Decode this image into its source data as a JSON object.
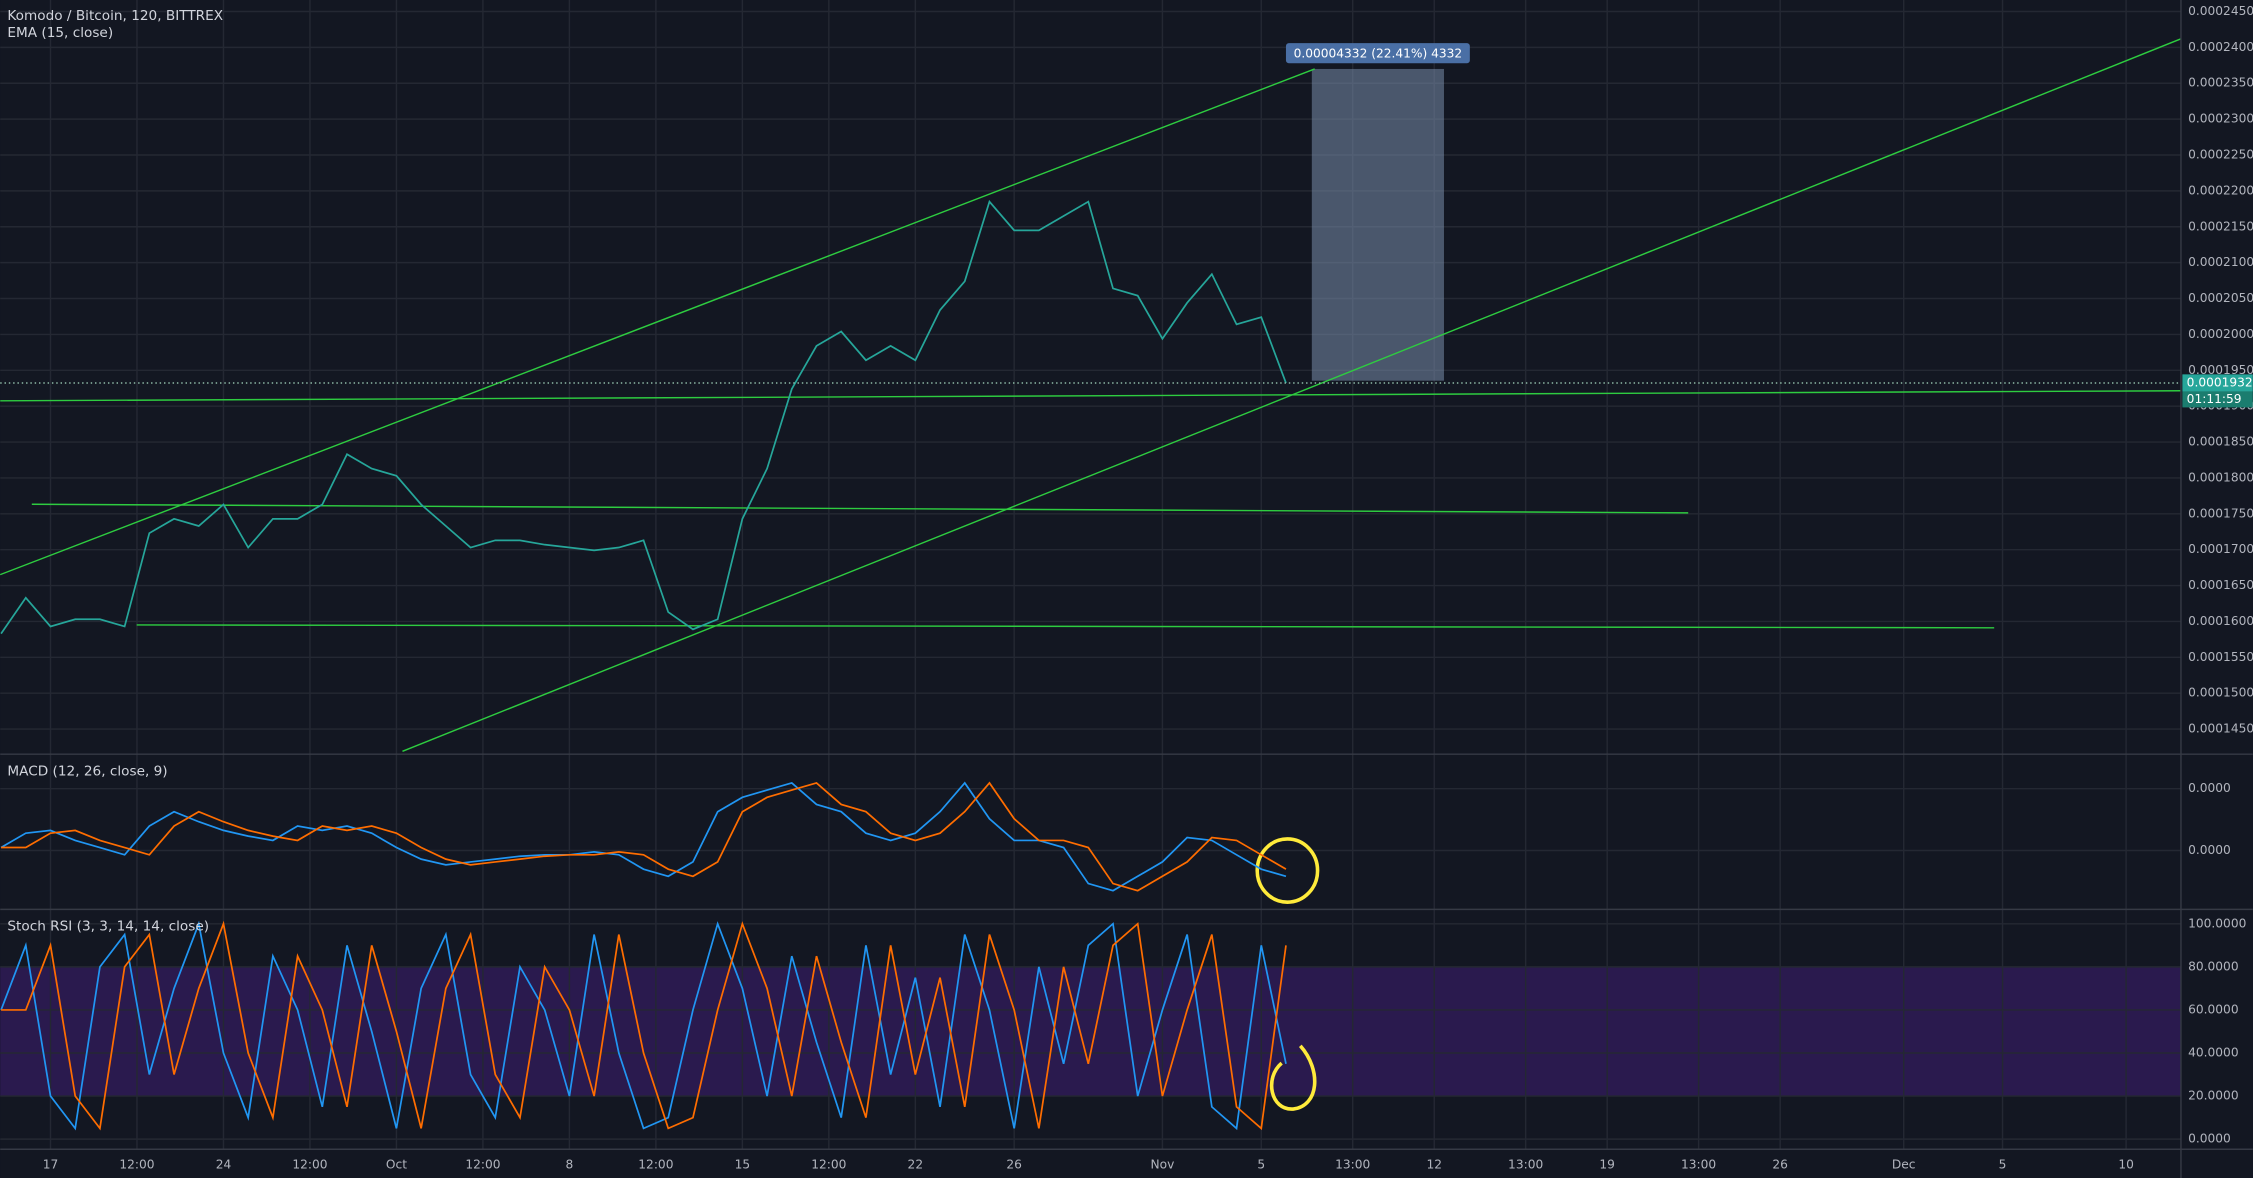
{
  "chart_data": [
    {
      "type": "line",
      "title": "Komodo / Bitcoin, 120, BITTREX",
      "subtitle": "EMA (15, close)",
      "x": [
        -2,
        -1,
        0,
        1,
        2,
        3,
        4,
        5,
        6,
        7,
        8,
        9,
        10,
        11,
        12,
        13,
        14,
        15,
        16,
        17,
        18,
        19,
        20,
        21,
        22,
        23,
        24,
        25,
        26,
        27,
        28,
        29,
        30,
        31,
        32,
        33,
        34,
        35,
        36,
        37,
        38,
        39,
        40,
        41,
        42,
        43,
        44,
        45,
        46,
        47,
        48,
        49,
        50
      ],
      "series": [
        {
          "color": "#26a69a",
          "values": [
            0.0001583,
            0.0001633,
            0.0001593,
            0.0001603,
            0.0001603,
            0.0001593,
            0.0001723,
            0.0001743,
            0.0001733,
            0.0001763,
            0.0001703,
            0.0001743,
            0.0001743,
            0.0001763,
            0.0001833,
            0.0001813,
            0.0001803,
            0.0001763,
            0.0001733,
            0.0001703,
            0.0001713,
            0.0001713,
            0.0001707,
            0.0001703,
            0.0001699,
            0.0001703,
            0.0001713,
            0.0001613,
            0.0001589,
            0.0001603,
            0.0001743,
            0.0001813,
            0.0001924,
            0.0001984,
            0.0002004,
            0.0001964,
            0.0001984,
            0.0001964,
            0.0002034,
            0.0002074,
            0.0002185,
            0.0002145,
            0.0002145,
            0.0002165,
            0.0002185,
            0.0002064,
            0.0002054,
            0.0001994,
            0.0002044,
            0.0002084,
            0.0002014,
            0.0002024,
            0.00019323
          ]
        }
      ],
      "xlim": [
        -2.035,
        86.22
      ],
      "ylim": [
        0.0001415,
        0.0002466
      ],
      "yticks": [
        {
          "value": 0.000145,
          "label": "0.00014500"
        },
        {
          "value": 0.00015,
          "label": "0.00015000"
        },
        {
          "value": 0.000155,
          "label": "0.00015500"
        },
        {
          "value": 0.00016,
          "label": "0.00016000"
        },
        {
          "value": 0.000165,
          "label": "0.00016500"
        },
        {
          "value": 0.00017,
          "label": "0.00017000"
        },
        {
          "value": 0.000175,
          "label": "0.00017500"
        },
        {
          "value": 0.00018,
          "label": "0.00018000"
        },
        {
          "value": 0.000185,
          "label": "0.00018500"
        },
        {
          "value": 0.00019,
          "label": "0.00019000"
        },
        {
          "value": 0.000195,
          "label": "0.00019500"
        },
        {
          "value": 0.0002,
          "label": "0.00020000"
        },
        {
          "value": 0.000205,
          "label": "0.00020500"
        },
        {
          "value": 0.00021,
          "label": "0.00021000"
        },
        {
          "value": 0.000215,
          "label": "0.00021500"
        },
        {
          "value": 0.00022,
          "label": "0.00022000"
        },
        {
          "value": 0.000225,
          "label": "0.00022500"
        },
        {
          "value": 0.00023,
          "label": "0.00023000"
        },
        {
          "value": 0.000235,
          "label": "0.00023500"
        },
        {
          "value": 0.00024,
          "label": "0.00024000"
        },
        {
          "value": 0.000245,
          "label": "0.00024500"
        }
      ],
      "measure_label": "0.00004332 (22.41%) 4332",
      "last_value": 0.00019323,
      "countdown": "01:11:59",
      "grid": true
    },
    {
      "type": "line",
      "title": "MACD (12, 26, close, 9)",
      "series": [
        {
          "color": "#2196f3",
          "values": [
            1.9e-07,
            1.12e-06,
            1.3e-06,
            6.5e-07,
            1.9e-07,
            -2.8e-07,
            1.58e-06,
            2.51e-06,
            1.86e-06,
            1.3e-06,
            9.3e-07,
            6.5e-07,
            1.58e-06,
            1.3e-06,
            1.58e-06,
            1.12e-06,
            1.9e-07,
            -5.6e-07,
            -9.3e-07,
            -7.4e-07,
            -5.6e-07,
            -3.7e-07,
            -2.8e-07,
            -2.8e-07,
            -9e-08,
            -2.8e-07,
            -1.21e-06,
            -1.67e-06,
            -7.4e-07,
            2.51e-06,
            3.44e-06,
            3.91e-06,
            4.37e-06,
            2.98e-06,
            2.51e-06,
            1.12e-06,
            6.5e-07,
            1.12e-06,
            2.51e-06,
            4.37e-06,
            2.05e-06,
            6.5e-07,
            6.5e-07,
            1.9e-07,
            -2.14e-06,
            -2.6e-06,
            -1.67e-06,
            -7.4e-07,
            8.4e-07,
            6.5e-07,
            -2.8e-07,
            -1.21e-06,
            -1.67e-06
          ]
        },
        {
          "color": "#ff6d00",
          "values": [
            1.9e-07,
            1.9e-07,
            1.12e-06,
            1.3e-06,
            6.5e-07,
            1.9e-07,
            -2.8e-07,
            1.58e-06,
            2.51e-06,
            1.86e-06,
            1.3e-06,
            9.3e-07,
            6.5e-07,
            1.58e-06,
            1.3e-06,
            1.58e-06,
            1.12e-06,
            1.9e-07,
            -5.6e-07,
            -9.3e-07,
            -7.4e-07,
            -5.6e-07,
            -3.7e-07,
            -2.8e-07,
            -2.8e-07,
            -9e-08,
            -2.8e-07,
            -1.21e-06,
            -1.67e-06,
            -7.4e-07,
            2.51e-06,
            3.44e-06,
            3.91e-06,
            4.37e-06,
            2.98e-06,
            2.51e-06,
            1.12e-06,
            6.5e-07,
            1.12e-06,
            2.51e-06,
            4.37e-06,
            2.05e-06,
            6.5e-07,
            6.5e-07,
            1.9e-07,
            -2.14e-06,
            -2.6e-06,
            -1.67e-06,
            -7.4e-07,
            8.4e-07,
            6.5e-07,
            -2.8e-07,
            -1.21e-06
          ]
        }
      ],
      "xlim": [
        -2.035,
        86.22
      ],
      "ylim": [
        -3.81e-06,
        6.23e-06
      ],
      "yticks": [
        {
          "value": 0,
          "label": "0.0000"
        },
        {
          "value": 4e-06,
          "label": "0.0000"
        }
      ],
      "grid": true
    },
    {
      "type": "line",
      "title": "Stoch RSI (3, 3, 14, 14, close)",
      "series": [
        {
          "color": "#2196f3",
          "values": [
            60,
            90,
            20,
            5,
            80,
            95,
            30,
            70,
            100,
            40,
            10,
            85,
            60,
            15,
            90,
            50,
            5,
            70,
            95,
            30,
            10,
            80,
            60,
            20,
            95,
            40,
            5,
            10,
            60,
            100,
            70,
            20,
            85,
            45,
            10,
            90,
            30,
            75,
            15,
            95,
            60,
            5,
            80,
            35,
            90,
            100,
            20,
            60,
            95,
            15,
            5,
            90,
            35
          ]
        },
        {
          "color": "#ff6d00",
          "values": [
            60,
            60,
            90,
            20,
            5,
            80,
            95,
            30,
            70,
            100,
            40,
            10,
            85,
            60,
            15,
            90,
            50,
            5,
            70,
            95,
            30,
            10,
            80,
            60,
            20,
            95,
            40,
            5,
            10,
            60,
            100,
            70,
            20,
            85,
            45,
            10,
            90,
            30,
            75,
            15,
            95,
            60,
            5,
            80,
            35,
            90,
            100,
            20,
            60,
            95,
            15,
            5,
            90
          ]
        }
      ],
      "xlim": [
        -2.035,
        86.22
      ],
      "ylim": [
        -4.7,
        106.7
      ],
      "band": [
        20,
        80
      ],
      "band_color": "#2a1a4e",
      "yticks": [
        {
          "value": 0,
          "label": "0.0000"
        },
        {
          "value": 20,
          "label": "20.0000"
        },
        {
          "value": 40,
          "label": "40.0000"
        },
        {
          "value": 60,
          "label": "60.0000"
        },
        {
          "value": 80,
          "label": "80.0000"
        },
        {
          "value": 100,
          "label": "100.0000"
        }
      ],
      "xticks": [
        {
          "value": 0,
          "label": "17"
        },
        {
          "value": 3.5,
          "label": "12:00"
        },
        {
          "value": 7,
          "label": "24"
        },
        {
          "value": 10.5,
          "label": "12:00"
        },
        {
          "value": 14,
          "label": "Oct"
        },
        {
          "value": 17.5,
          "label": "12:00"
        },
        {
          "value": 21,
          "label": "8"
        },
        {
          "value": 24.5,
          "label": "12:00"
        },
        {
          "value": 28,
          "label": "15"
        },
        {
          "value": 31.5,
          "label": "12:00"
        },
        {
          "value": 35,
          "label": "22"
        },
        {
          "value": 39,
          "label": "26"
        },
        {
          "value": 45,
          "label": "Nov"
        },
        {
          "value": 49,
          "label": "5"
        },
        {
          "value": 52.7,
          "label": "13:00"
        },
        {
          "value": 56,
          "label": "12"
        },
        {
          "value": 59.7,
          "label": "13:00"
        },
        {
          "value": 63,
          "label": "19"
        },
        {
          "value": 66.7,
          "label": "13:00"
        },
        {
          "value": 70,
          "label": "26"
        },
        {
          "value": 75,
          "label": "Dec"
        },
        {
          "value": 79,
          "label": "5"
        },
        {
          "value": 84,
          "label": "10"
        }
      ],
      "grid": true
    }
  ]
}
